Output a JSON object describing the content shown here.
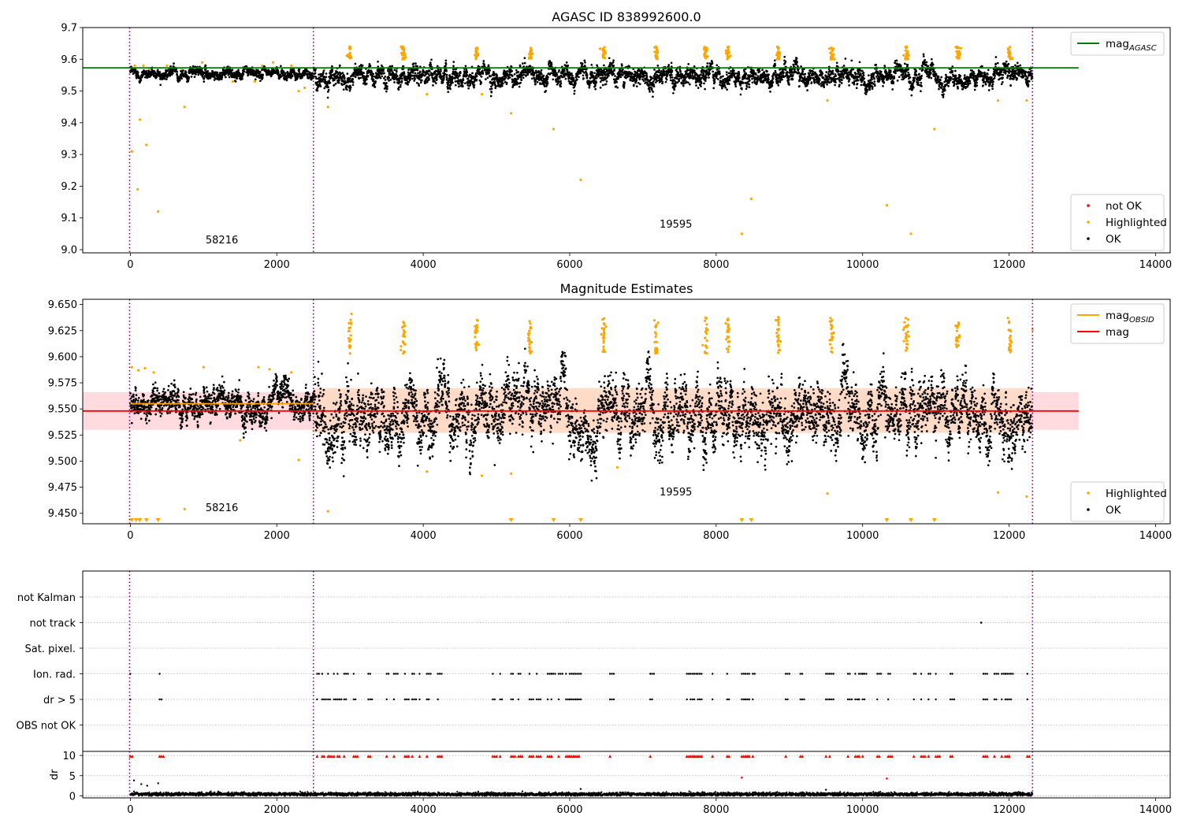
{
  "chart_data": [
    {
      "type": "scatter",
      "title": "AGASC ID 838992600.0",
      "xlim": [
        -650,
        14200
      ],
      "ylim": [
        8.99,
        9.7
      ],
      "xticks": [
        0,
        2000,
        4000,
        6000,
        8000,
        10000,
        12000,
        14000
      ],
      "yticks": [
        9.0,
        9.1,
        9.2,
        9.3,
        9.4,
        9.5,
        9.6,
        9.7
      ],
      "ytick_decimals": 1,
      "vlines": [
        -10,
        2500,
        12320
      ],
      "reference_line": {
        "label": "mag",
        "subscript": "AGASC",
        "value": 9.573,
        "x_range": [
          -650,
          12950
        ],
        "color": "#008000"
      },
      "annotations": [
        {
          "text": "58216",
          "x": 1250,
          "y": 9.02
        },
        {
          "text": "19595",
          "x": 7450,
          "y": 9.07
        }
      ],
      "legend_upper": {
        "placement": "upper-right",
        "entries": [
          {
            "label": "mag",
            "subscript": "AGASC",
            "kind": "line",
            "color": "#008000"
          }
        ]
      },
      "legend_lower": {
        "placement": "lower-right",
        "entries": [
          {
            "label": "not OK",
            "kind": "dot",
            "color": "#ff0000"
          },
          {
            "label": "Highlighted",
            "kind": "dot",
            "color": "#ffa500"
          },
          {
            "label": "OK",
            "kind": "dot",
            "color": "#000000"
          }
        ]
      },
      "series": [
        {
          "name": "OK",
          "color": "#000000",
          "segments": [
            {
              "x_range": [
                0,
                2500
              ],
              "center": 9.556,
              "spread": 0.012
            },
            {
              "x_range": [
                2500,
                12320
              ],
              "center": 9.548,
              "spread": 0.022
            }
          ]
        },
        {
          "name": "Highlighted",
          "color": "#ffa500",
          "x_clusters": [
            3000,
            3730,
            4730,
            5460,
            6460,
            7180,
            7860,
            8160,
            8850,
            9580,
            10600,
            11300,
            12010
          ],
          "cluster_range": [
            9.6,
            9.64
          ],
          "points": [
            [
              20,
              9.31
            ],
            [
              100,
              9.19
            ],
            [
              130,
              9.41
            ],
            [
              220,
              9.33
            ],
            [
              380,
              9.12
            ],
            [
              740,
              9.45
            ],
            [
              2300,
              9.5
            ],
            [
              2700,
              9.45
            ],
            [
              4050,
              9.49
            ],
            [
              4800,
              9.49
            ],
            [
              5200,
              9.43
            ],
            [
              5780,
              9.38
            ],
            [
              6150,
              9.22
            ],
            [
              8350,
              9.05
            ],
            [
              8480,
              9.16
            ],
            [
              9520,
              9.47
            ],
            [
              10330,
              9.14
            ],
            [
              10660,
              9.05
            ],
            [
              10980,
              9.38
            ],
            [
              11850,
              9.47
            ],
            [
              12240,
              9.47
            ],
            [
              60,
              9.58
            ],
            [
              180,
              9.58
            ],
            [
              260,
              9.57
            ],
            [
              500,
              9.58
            ],
            [
              700,
              9.57
            ],
            [
              980,
              9.59
            ],
            [
              1400,
              9.53
            ],
            [
              1700,
              9.53
            ],
            [
              1800,
              9.58
            ],
            [
              1950,
              9.59
            ],
            [
              2200,
              9.58
            ],
            [
              2380,
              9.51
            ],
            [
              2650,
              9.57
            ],
            [
              12320,
              9.63
            ]
          ]
        },
        {
          "name": "not OK",
          "color": "#ff0000",
          "points": []
        }
      ]
    },
    {
      "type": "scatter",
      "title": "Magnitude Estimates",
      "xlim": [
        -650,
        14200
      ],
      "ylim": [
        9.44,
        9.655
      ],
      "xticks": [
        0,
        2000,
        4000,
        6000,
        8000,
        10000,
        12000,
        14000
      ],
      "yticks": [
        9.45,
        9.475,
        9.5,
        9.525,
        9.55,
        9.575,
        9.6,
        9.625,
        9.65
      ],
      "ytick_decimals": 3,
      "vlines": [
        -10,
        2500,
        12320
      ],
      "mag_line": {
        "label": "mag",
        "value": 9.548,
        "x_range": [
          -650,
          12950
        ],
        "color": "#ff0000"
      },
      "obsid_line": {
        "label": "mag",
        "subscript": "OBSID",
        "value": 9.555,
        "x_range": [
          0,
          2500
        ],
        "color": "#ffa500"
      },
      "bands": [
        {
          "x_range": [
            -650,
            12950
          ],
          "y_range": [
            9.53,
            9.566
          ],
          "color": "#ffd6dc"
        },
        {
          "x_range": [
            2500,
            12320
          ],
          "y_range": [
            9.527,
            9.57
          ],
          "color": "#ffd9c4"
        }
      ],
      "annotations": [
        {
          "text": "58216",
          "x": 1250,
          "y": 9.452
        },
        {
          "text": "19595",
          "x": 7450,
          "y": 9.467
        }
      ],
      "legend_upper": {
        "placement": "upper-right",
        "entries": [
          {
            "label": "mag",
            "subscript": "OBSID",
            "kind": "line",
            "color": "#ffa500"
          },
          {
            "label": "mag",
            "kind": "line",
            "color": "#ff0000"
          }
        ]
      },
      "legend_lower": {
        "placement": "lower-right",
        "entries": [
          {
            "label": "Highlighted",
            "kind": "dot",
            "color": "#ffa500"
          },
          {
            "label": "OK",
            "kind": "dot",
            "color": "#000000"
          }
        ]
      },
      "series": [
        {
          "name": "OK",
          "color": "#000000",
          "segments": [
            {
              "x_range": [
                0,
                2500
              ],
              "center": 9.553,
              "spread": 0.01
            },
            {
              "x_range": [
                2500,
                12320
              ],
              "center": 9.545,
              "spread": 0.02
            }
          ]
        },
        {
          "name": "Highlighted",
          "color": "#ffa500",
          "x_clusters": [
            3000,
            3730,
            4730,
            5460,
            6460,
            7180,
            7860,
            8160,
            8850,
            9580,
            10600,
            11300,
            12010
          ],
          "cluster_range": [
            9.603,
            9.638
          ],
          "points": [
            [
              20,
              9.59
            ],
            [
              110,
              9.587
            ],
            [
              200,
              9.589
            ],
            [
              320,
              9.585
            ],
            [
              740,
              9.454
            ],
            [
              1000,
              9.59
            ],
            [
              1500,
              9.52
            ],
            [
              1750,
              9.59
            ],
            [
              1900,
              9.588
            ],
            [
              2200,
              9.585
            ],
            [
              2300,
              9.501
            ],
            [
              2700,
              9.452
            ],
            [
              3020,
              9.641
            ],
            [
              4050,
              9.49
            ],
            [
              4800,
              9.486
            ],
            [
              5200,
              9.488
            ],
            [
              6650,
              9.494
            ],
            [
              9520,
              9.469
            ],
            [
              11850,
              9.47
            ],
            [
              12240,
              9.466
            ],
            [
              12320,
              9.626
            ]
          ],
          "clipped_markers_x": [
            20,
            80,
            130,
            220,
            380,
            5200,
            5780,
            6150,
            8350,
            8480,
            10330,
            10660,
            10980
          ]
        }
      ]
    },
    {
      "type": "scatter",
      "categories": [
        "not Kalman",
        "not track",
        "Sat. pixel.",
        "Ion. rad.",
        "dr > 5",
        "OBS not OK"
      ],
      "xlim": [
        -650,
        14200
      ],
      "xticks": [
        0,
        2000,
        4000,
        6000,
        8000,
        10000,
        12000,
        14000
      ],
      "vlines": [
        -10,
        2500,
        12320
      ],
      "flag_x": [
        0,
        400,
        2550,
        2620,
        2700,
        2780,
        2830,
        2920,
        3050,
        3250,
        3500,
        3600,
        3750,
        3850,
        3950,
        4050,
        4200,
        4950,
        5050,
        5200,
        5300,
        5450,
        5550,
        5700,
        5750,
        5850,
        5950,
        6000,
        6050,
        6100,
        6550,
        7100,
        7600,
        7650,
        7700,
        7750,
        7950,
        8150,
        8350,
        8400,
        8450,
        8500,
        8950,
        9150,
        9500,
        9550,
        9800,
        9900,
        9950,
        10000,
        10200,
        10350,
        10700,
        10800,
        10900,
        11000,
        11200,
        11650,
        11800,
        11900,
        11950,
        12000,
        12250
      ],
      "not_track_x": [
        11620
      ],
      "dr_label": "dr",
      "dr_ylim": [
        -0.5,
        11
      ],
      "dr_yticks": [
        0,
        5,
        10
      ],
      "dr_base": 0.4,
      "dr_spikes": [
        [
          50,
          3.8
        ],
        [
          150,
          2.9
        ],
        [
          230,
          2.5
        ],
        [
          380,
          3.1
        ],
        [
          6150,
          1.7
        ],
        [
          9500,
          1.5
        ],
        [
          1100,
          1.1
        ]
      ],
      "dr_high_red": [
        [
          8350,
          4.5
        ],
        [
          10330,
          4.3
        ]
      ]
    }
  ]
}
